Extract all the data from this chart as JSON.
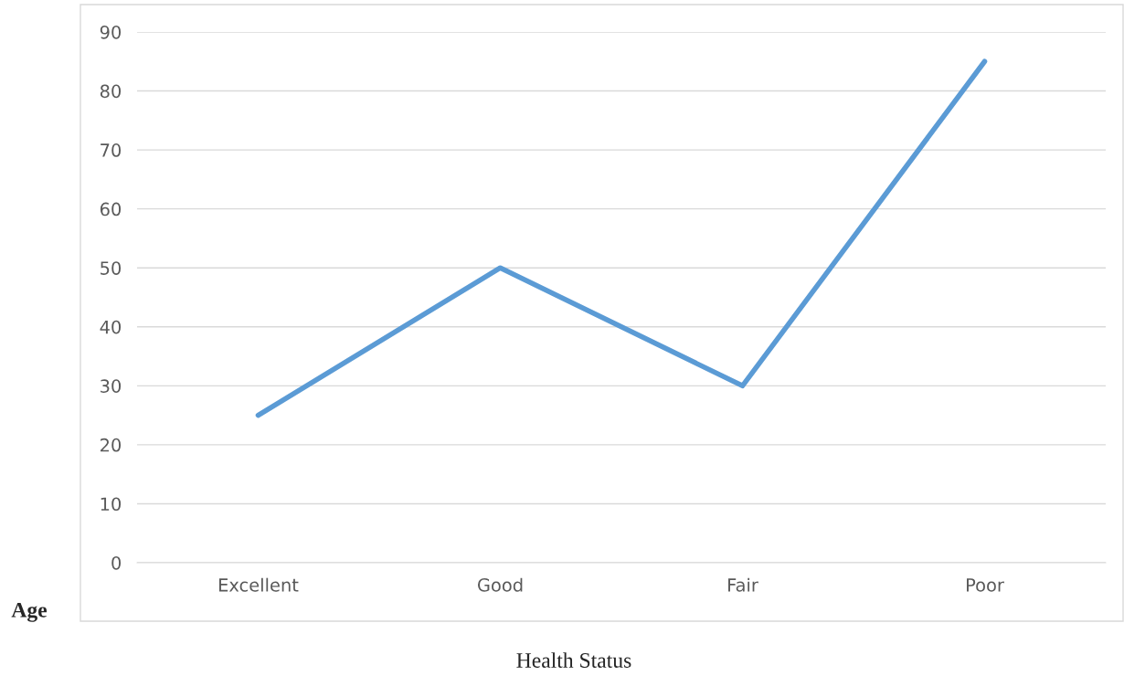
{
  "chart_data": {
    "type": "line",
    "xlabel": "Health Status",
    "ylabel": "Age",
    "categories": [
      "Excellent",
      "Good",
      "Fair",
      "Poor"
    ],
    "series": [
      {
        "color": "#5b9bd5",
        "values": [
          25,
          50,
          30,
          85
        ]
      }
    ],
    "ylim": [
      0,
      90
    ],
    "yticks": [
      0,
      10,
      20,
      30,
      40,
      50,
      60,
      70,
      80,
      90
    ],
    "grid": "y",
    "marker": "none",
    "line_style": "solid"
  }
}
